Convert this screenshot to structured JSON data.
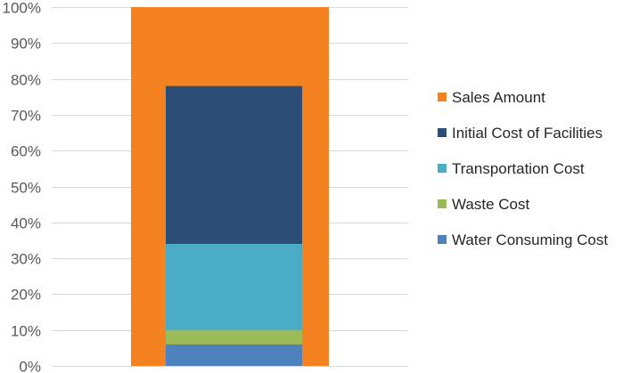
{
  "chart_data": {
    "type": "bar",
    "subtype": "overlapping",
    "title": "",
    "xlabel": "",
    "ylabel": "",
    "ylim": [
      0,
      100
    ],
    "y_ticks": [
      "0%",
      "10%",
      "20%",
      "30%",
      "40%",
      "50%",
      "60%",
      "70%",
      "80%",
      "90%",
      "100%"
    ],
    "grid": true,
    "legend_position": "right",
    "background_bar": {
      "name": "Sales Amount",
      "value": 100,
      "color": "#f58220"
    },
    "stack": [
      {
        "name": "Water Consuming Cost",
        "value": 6,
        "color": "#4f81bd"
      },
      {
        "name": "Waste Cost",
        "value": 4,
        "color": "#9bbb59"
      },
      {
        "name": "Transportation Cost",
        "value": 24,
        "color": "#4bacc6"
      },
      {
        "name": "Initial Cost of Facilities",
        "value": 44,
        "color": "#2c4d75"
      }
    ],
    "legend": [
      {
        "name": "Sales Amount",
        "color": "#f58220"
      },
      {
        "name": "Initial Cost of Facilities",
        "color": "#2c4d75"
      },
      {
        "name": "Transportation Cost",
        "color": "#4bacc6"
      },
      {
        "name": "Waste Cost",
        "color": "#9bbb59"
      },
      {
        "name": "Water Consuming Cost",
        "color": "#4f81bd"
      }
    ]
  }
}
